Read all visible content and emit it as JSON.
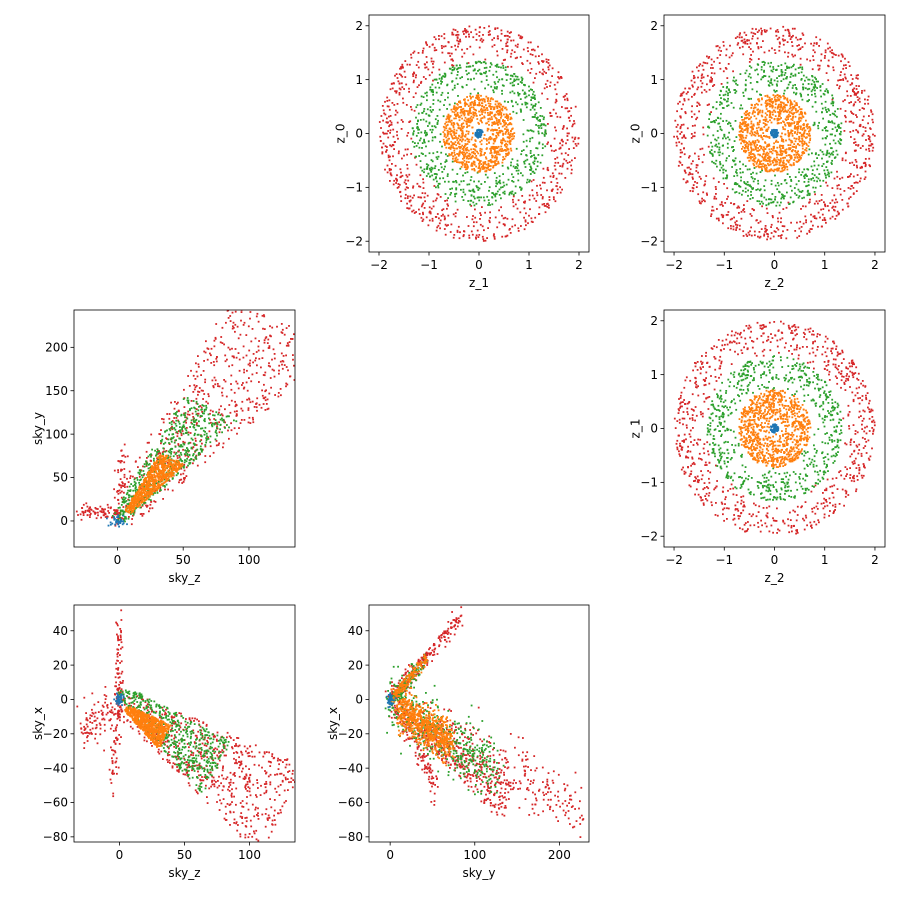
{
  "colors": {
    "blue": "#1f77b4",
    "orange": "#ff7f0e",
    "green": "#2ca02c",
    "red": "#d62728"
  },
  "chart_data": [
    {
      "type": "scatter",
      "id": "z1_z0",
      "xlabel": "z_1",
      "ylabel": "z_0",
      "xlim": [
        -2.2,
        2.2
      ],
      "ylim": [
        -2.2,
        2.2
      ],
      "xticks": [
        -2,
        -1,
        0,
        1,
        2
      ],
      "yticks": [
        -2,
        -1,
        0,
        1,
        2
      ],
      "series": [
        {
          "color": "red",
          "shape": "ring",
          "r_min": 1.3,
          "r_max": 2.0,
          "n": 800
        },
        {
          "color": "green",
          "shape": "ring",
          "r_min": 0.7,
          "r_max": 1.35,
          "n": 650
        },
        {
          "color": "orange",
          "shape": "ring",
          "r_min": 0.1,
          "r_max": 0.72,
          "n": 900
        },
        {
          "color": "blue",
          "shape": "ring",
          "r_min": 0.0,
          "r_max": 0.08,
          "n": 60
        }
      ]
    },
    {
      "type": "scatter",
      "id": "z2_z0",
      "xlabel": "z_2",
      "ylabel": "z_0",
      "xlim": [
        -2.2,
        2.2
      ],
      "ylim": [
        -2.2,
        2.2
      ],
      "xticks": [
        -2,
        -1,
        0,
        1,
        2
      ],
      "yticks": [
        -2,
        -1,
        0,
        1,
        2
      ],
      "series": [
        {
          "color": "red",
          "shape": "ring",
          "r_min": 1.3,
          "r_max": 2.0,
          "n": 800
        },
        {
          "color": "green",
          "shape": "ring",
          "r_min": 0.7,
          "r_max": 1.35,
          "n": 650
        },
        {
          "color": "orange",
          "shape": "ring",
          "r_min": 0.1,
          "r_max": 0.72,
          "n": 900
        },
        {
          "color": "blue",
          "shape": "ring",
          "r_min": 0.0,
          "r_max": 0.08,
          "n": 60
        }
      ]
    },
    {
      "type": "scatter",
      "id": "skyz_skyy",
      "xlabel": "sky_z",
      "ylabel": "sky_y",
      "xlim": [
        -33,
        135
      ],
      "ylim": [
        -30,
        243
      ],
      "xticks": [
        0,
        50,
        100
      ],
      "yticks": [
        0,
        50,
        100,
        150,
        200
      ],
      "series": [
        {
          "color": "red",
          "shape": "wedge",
          "x0": 0,
          "y0": 0,
          "x1": 128,
          "y1": 228,
          "spread": 60,
          "n": 650
        },
        {
          "color": "red",
          "shape": "line",
          "x0": -28,
          "y0": 12,
          "x1": 0,
          "y1": 8,
          "spread": 4,
          "n": 80
        },
        {
          "color": "red",
          "shape": "line",
          "x0": 0,
          "y0": 0,
          "x1": 5,
          "y1": 85,
          "spread": 4,
          "n": 50
        },
        {
          "color": "green",
          "shape": "wedge",
          "x0": 0,
          "y0": 0,
          "x1": 72,
          "y1": 130,
          "spread": 30,
          "n": 550
        },
        {
          "color": "orange",
          "shape": "wedge",
          "x0": 8,
          "y0": 10,
          "x1": 42,
          "y1": 72,
          "spread": 14,
          "n": 700
        },
        {
          "color": "blue",
          "shape": "blob",
          "x0": 0,
          "y0": 0,
          "spread": 3,
          "n": 40
        }
      ]
    },
    {
      "type": "scatter",
      "id": "z2_z1",
      "xlabel": "z_2",
      "ylabel": "z_1",
      "xlim": [
        -2.2,
        2.2
      ],
      "ylim": [
        -2.2,
        2.2
      ],
      "xticks": [
        -2,
        -1,
        0,
        1,
        2
      ],
      "yticks": [
        -2,
        -1,
        0,
        1,
        2
      ],
      "series": [
        {
          "color": "red",
          "shape": "ring",
          "r_min": 1.3,
          "r_max": 2.0,
          "n": 800
        },
        {
          "color": "green",
          "shape": "ring",
          "r_min": 0.7,
          "r_max": 1.35,
          "n": 650
        },
        {
          "color": "orange",
          "shape": "ring",
          "r_min": 0.1,
          "r_max": 0.72,
          "n": 900
        },
        {
          "color": "blue",
          "shape": "ring",
          "r_min": 0.0,
          "r_max": 0.08,
          "n": 60
        }
      ]
    },
    {
      "type": "scatter",
      "id": "skyz_skyx",
      "xlabel": "sky_z",
      "ylabel": "sky_x",
      "xlim": [
        -35,
        135
      ],
      "ylim": [
        -83,
        55
      ],
      "xticks": [
        0,
        50,
        100
      ],
      "yticks": [
        -80,
        -60,
        -40,
        -20,
        0,
        20,
        40
      ],
      "series": [
        {
          "color": "red",
          "shape": "wedge",
          "x0": 0,
          "y0": 0,
          "x1": 125,
          "y1": -65,
          "spread": 30,
          "n": 650
        },
        {
          "color": "red",
          "shape": "line",
          "x0": -28,
          "y0": -15,
          "x1": 0,
          "y1": -5,
          "spread": 6,
          "n": 120
        },
        {
          "color": "red",
          "shape": "line",
          "x0": 0,
          "y0": 0,
          "x1": 0,
          "y1": 48,
          "spread": 3,
          "n": 70
        },
        {
          "color": "red",
          "shape": "line",
          "x0": 0,
          "y0": 0,
          "x1": -6,
          "y1": -52,
          "spread": 3,
          "n": 60
        },
        {
          "color": "green",
          "shape": "wedge",
          "x0": 0,
          "y0": 5,
          "x1": 75,
          "y1": -40,
          "spread": 18,
          "n": 550
        },
        {
          "color": "orange",
          "shape": "wedge",
          "x0": 5,
          "y0": -5,
          "x1": 35,
          "y1": -22,
          "spread": 8,
          "n": 700
        },
        {
          "color": "blue",
          "shape": "blob",
          "x0": 0,
          "y0": 0,
          "spread": 2,
          "n": 40
        }
      ]
    },
    {
      "type": "scatter",
      "id": "skyy_skyx",
      "xlabel": "sky_y",
      "ylabel": "sky_x",
      "xlim": [
        -25,
        235
      ],
      "ylim": [
        -83,
        55
      ],
      "xticks": [
        0,
        100,
        200
      ],
      "yticks": [
        -80,
        -60,
        -40,
        -20,
        0,
        20,
        40
      ],
      "series": [
        {
          "color": "red",
          "shape": "line",
          "x0": 0,
          "y0": 0,
          "x1": 225,
          "y1": -65,
          "spread": 8,
          "n": 350
        },
        {
          "color": "red",
          "shape": "line",
          "x0": 0,
          "y0": 0,
          "x1": 85,
          "y1": 48,
          "spread": 3,
          "n": 200
        },
        {
          "color": "red",
          "shape": "line",
          "x0": 5,
          "y0": 0,
          "x1": 55,
          "y1": -52,
          "spread": 4,
          "n": 120
        },
        {
          "color": "red",
          "shape": "wedge",
          "x0": 20,
          "y0": -10,
          "x1": 140,
          "y1": -60,
          "spread": 14,
          "n": 300
        },
        {
          "color": "green",
          "shape": "line",
          "x0": 0,
          "y0": 0,
          "x1": 125,
          "y1": -42,
          "spread": 9,
          "n": 450
        },
        {
          "color": "green",
          "shape": "line",
          "x0": 0,
          "y0": 0,
          "x1": 42,
          "y1": 22,
          "spread": 3,
          "n": 100
        },
        {
          "color": "orange",
          "shape": "line",
          "x0": 10,
          "y0": -5,
          "x1": 72,
          "y1": -25,
          "spread": 6,
          "n": 700
        },
        {
          "color": "orange",
          "shape": "line",
          "x0": 0,
          "y0": 0,
          "x1": 45,
          "y1": 25,
          "spread": 2,
          "n": 150
        },
        {
          "color": "blue",
          "shape": "blob",
          "x0": 0,
          "y0": 0,
          "spread": 2,
          "n": 40
        }
      ]
    }
  ]
}
